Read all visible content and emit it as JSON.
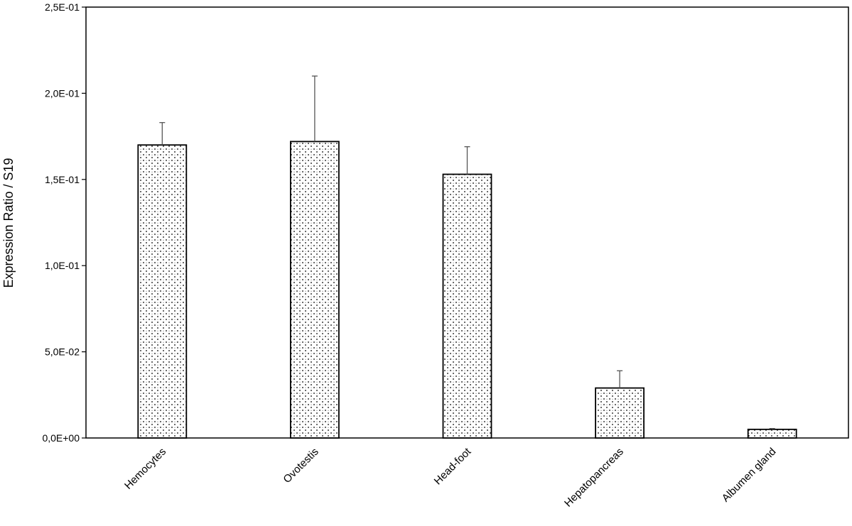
{
  "chart_data": {
    "type": "bar",
    "title": "",
    "xlabel": "",
    "ylabel": "Expression Ratio / S19",
    "ylim": [
      0,
      0.25
    ],
    "yticks": [
      0,
      0.05,
      0.1,
      0.15,
      0.2,
      0.25
    ],
    "ytick_labels": [
      "0,0E+00",
      "5,0E-02",
      "1,0E-01",
      "1,5E-01",
      "2,0E-01",
      "2,5E-01"
    ],
    "categories": [
      "Hemocytes",
      "Ovotestis",
      "Head-foot",
      "Hepatopancreas",
      "Albumen gland"
    ],
    "values": [
      0.17,
      0.172,
      0.153,
      0.029,
      0.005
    ],
    "error_upper": [
      0.013,
      0.038,
      0.016,
      0.01,
      0.0005
    ],
    "grid": false,
    "legend": "none",
    "bar_fill": "dotted-pattern",
    "colors": {
      "bar_border": "#000000",
      "dots": "#000000",
      "error_bar": "#555555",
      "axis": "#000000"
    }
  }
}
